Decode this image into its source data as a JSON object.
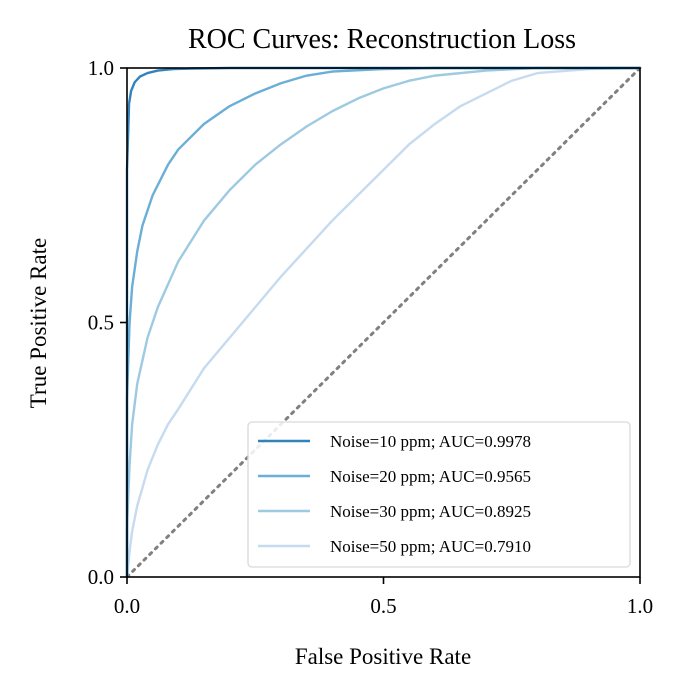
{
  "chart_data": {
    "type": "line",
    "title": "ROC Curves: Reconstruction Loss",
    "xlabel": "False Positive Rate",
    "ylabel": "True Positive Rate",
    "xlim": [
      0,
      1
    ],
    "ylim": [
      0,
      1
    ],
    "xticks": [
      "0.0",
      "0.5",
      "1.0"
    ],
    "yticks": [
      "0.0",
      "0.5",
      "1.0"
    ],
    "grid": false,
    "legend_position": "lower-right",
    "diagonal_reference": {
      "x": [
        0,
        1
      ],
      "y": [
        0,
        1
      ],
      "style": "dotted",
      "color": "#808080"
    },
    "series": [
      {
        "name": "Noise=10 ppm; AUC=0.9978",
        "color": "#3182bd",
        "x": [
          0.0,
          0.0,
          0.004,
          0.008,
          0.015,
          0.025,
          0.04,
          0.06,
          0.09,
          0.13,
          0.2,
          0.3,
          0.5,
          0.75,
          1.0
        ],
        "y": [
          0.0,
          0.8,
          0.93,
          0.955,
          0.972,
          0.983,
          0.99,
          0.995,
          0.998,
          0.999,
          1.0,
          1.0,
          1.0,
          1.0,
          1.0
        ]
      },
      {
        "name": "Noise=20 ppm; AUC=0.9565",
        "color": "#6baed6",
        "x": [
          0.0,
          0.0,
          0.005,
          0.01,
          0.02,
          0.03,
          0.05,
          0.08,
          0.1,
          0.15,
          0.2,
          0.25,
          0.3,
          0.35,
          0.4,
          0.5,
          0.6,
          1.0
        ],
        "y": [
          0.0,
          0.35,
          0.5,
          0.57,
          0.64,
          0.69,
          0.75,
          0.81,
          0.84,
          0.89,
          0.925,
          0.95,
          0.97,
          0.985,
          0.993,
          0.998,
          1.0,
          1.0
        ]
      },
      {
        "name": "Noise=30 ppm; AUC=0.8925",
        "color": "#9ecae1",
        "x": [
          0.0,
          0.0,
          0.005,
          0.01,
          0.02,
          0.04,
          0.06,
          0.1,
          0.15,
          0.2,
          0.25,
          0.3,
          0.35,
          0.4,
          0.45,
          0.5,
          0.55,
          0.6,
          0.7,
          0.8,
          1.0
        ],
        "y": [
          0.0,
          0.1,
          0.22,
          0.3,
          0.38,
          0.47,
          0.53,
          0.62,
          0.7,
          0.76,
          0.81,
          0.85,
          0.885,
          0.915,
          0.94,
          0.96,
          0.975,
          0.985,
          0.995,
          1.0,
          1.0
        ]
      },
      {
        "name": "Noise=50 ppm; AUC=0.7910",
        "color": "#c6dbef",
        "x": [
          0.0,
          0.005,
          0.01,
          0.02,
          0.04,
          0.06,
          0.08,
          0.1,
          0.15,
          0.2,
          0.25,
          0.3,
          0.35,
          0.4,
          0.45,
          0.5,
          0.55,
          0.6,
          0.65,
          0.7,
          0.75,
          0.8,
          0.9,
          1.0
        ],
        "y": [
          0.0,
          0.05,
          0.09,
          0.14,
          0.21,
          0.26,
          0.3,
          0.33,
          0.41,
          0.47,
          0.53,
          0.59,
          0.645,
          0.7,
          0.75,
          0.8,
          0.85,
          0.89,
          0.925,
          0.95,
          0.975,
          0.99,
          0.998,
          1.0
        ]
      }
    ]
  }
}
